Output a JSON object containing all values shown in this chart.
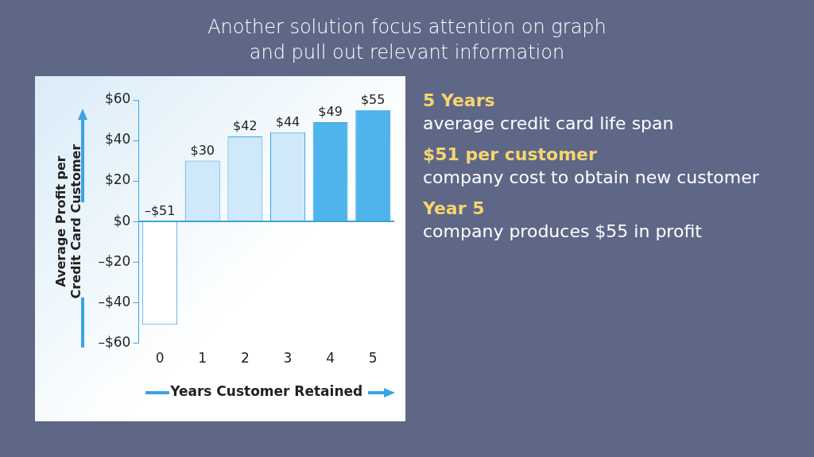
{
  "chart_data": {
    "type": "bar",
    "title": "Another solution focus attention on graph\nand pull out relevant information",
    "xlabel": "Years Customer Retained",
    "ylabel": "Average Profit per\nCredit Card Customer",
    "categories": [
      "0",
      "1",
      "2",
      "3",
      "4",
      "5"
    ],
    "values": [
      -51,
      30,
      42,
      44,
      49,
      55
    ],
    "colors": [
      "#ffffff",
      "#cfe8fa",
      "#cfe8fa",
      "#cfe8fa",
      "#4fb3ec",
      "#4fb3ec"
    ],
    "value_labels": [
      "–$51",
      "$30",
      "$42",
      "$44",
      "$49",
      "$55"
    ],
    "ylim": [
      -60,
      60
    ],
    "yticks": [
      {
        "value": -60,
        "label": "–$60"
      },
      {
        "value": -40,
        "label": "–$40"
      },
      {
        "value": -20,
        "label": "–$20"
      },
      {
        "value": 0,
        "label": "$0"
      },
      {
        "value": 20,
        "label": "$20"
      },
      {
        "value": 40,
        "label": "$40"
      },
      {
        "value": 60,
        "label": "$60"
      }
    ],
    "grid": false,
    "legend": false,
    "ref_lines": [
      {
        "axis": "y",
        "value": 0,
        "color": "#3aa3e3"
      }
    ],
    "annotations": [
      "5 Years",
      "average credit card life span",
      "$51 per customer",
      "company cost to obtain new customer",
      "Year 5",
      "company produces $55 in profit"
    ]
  }
}
